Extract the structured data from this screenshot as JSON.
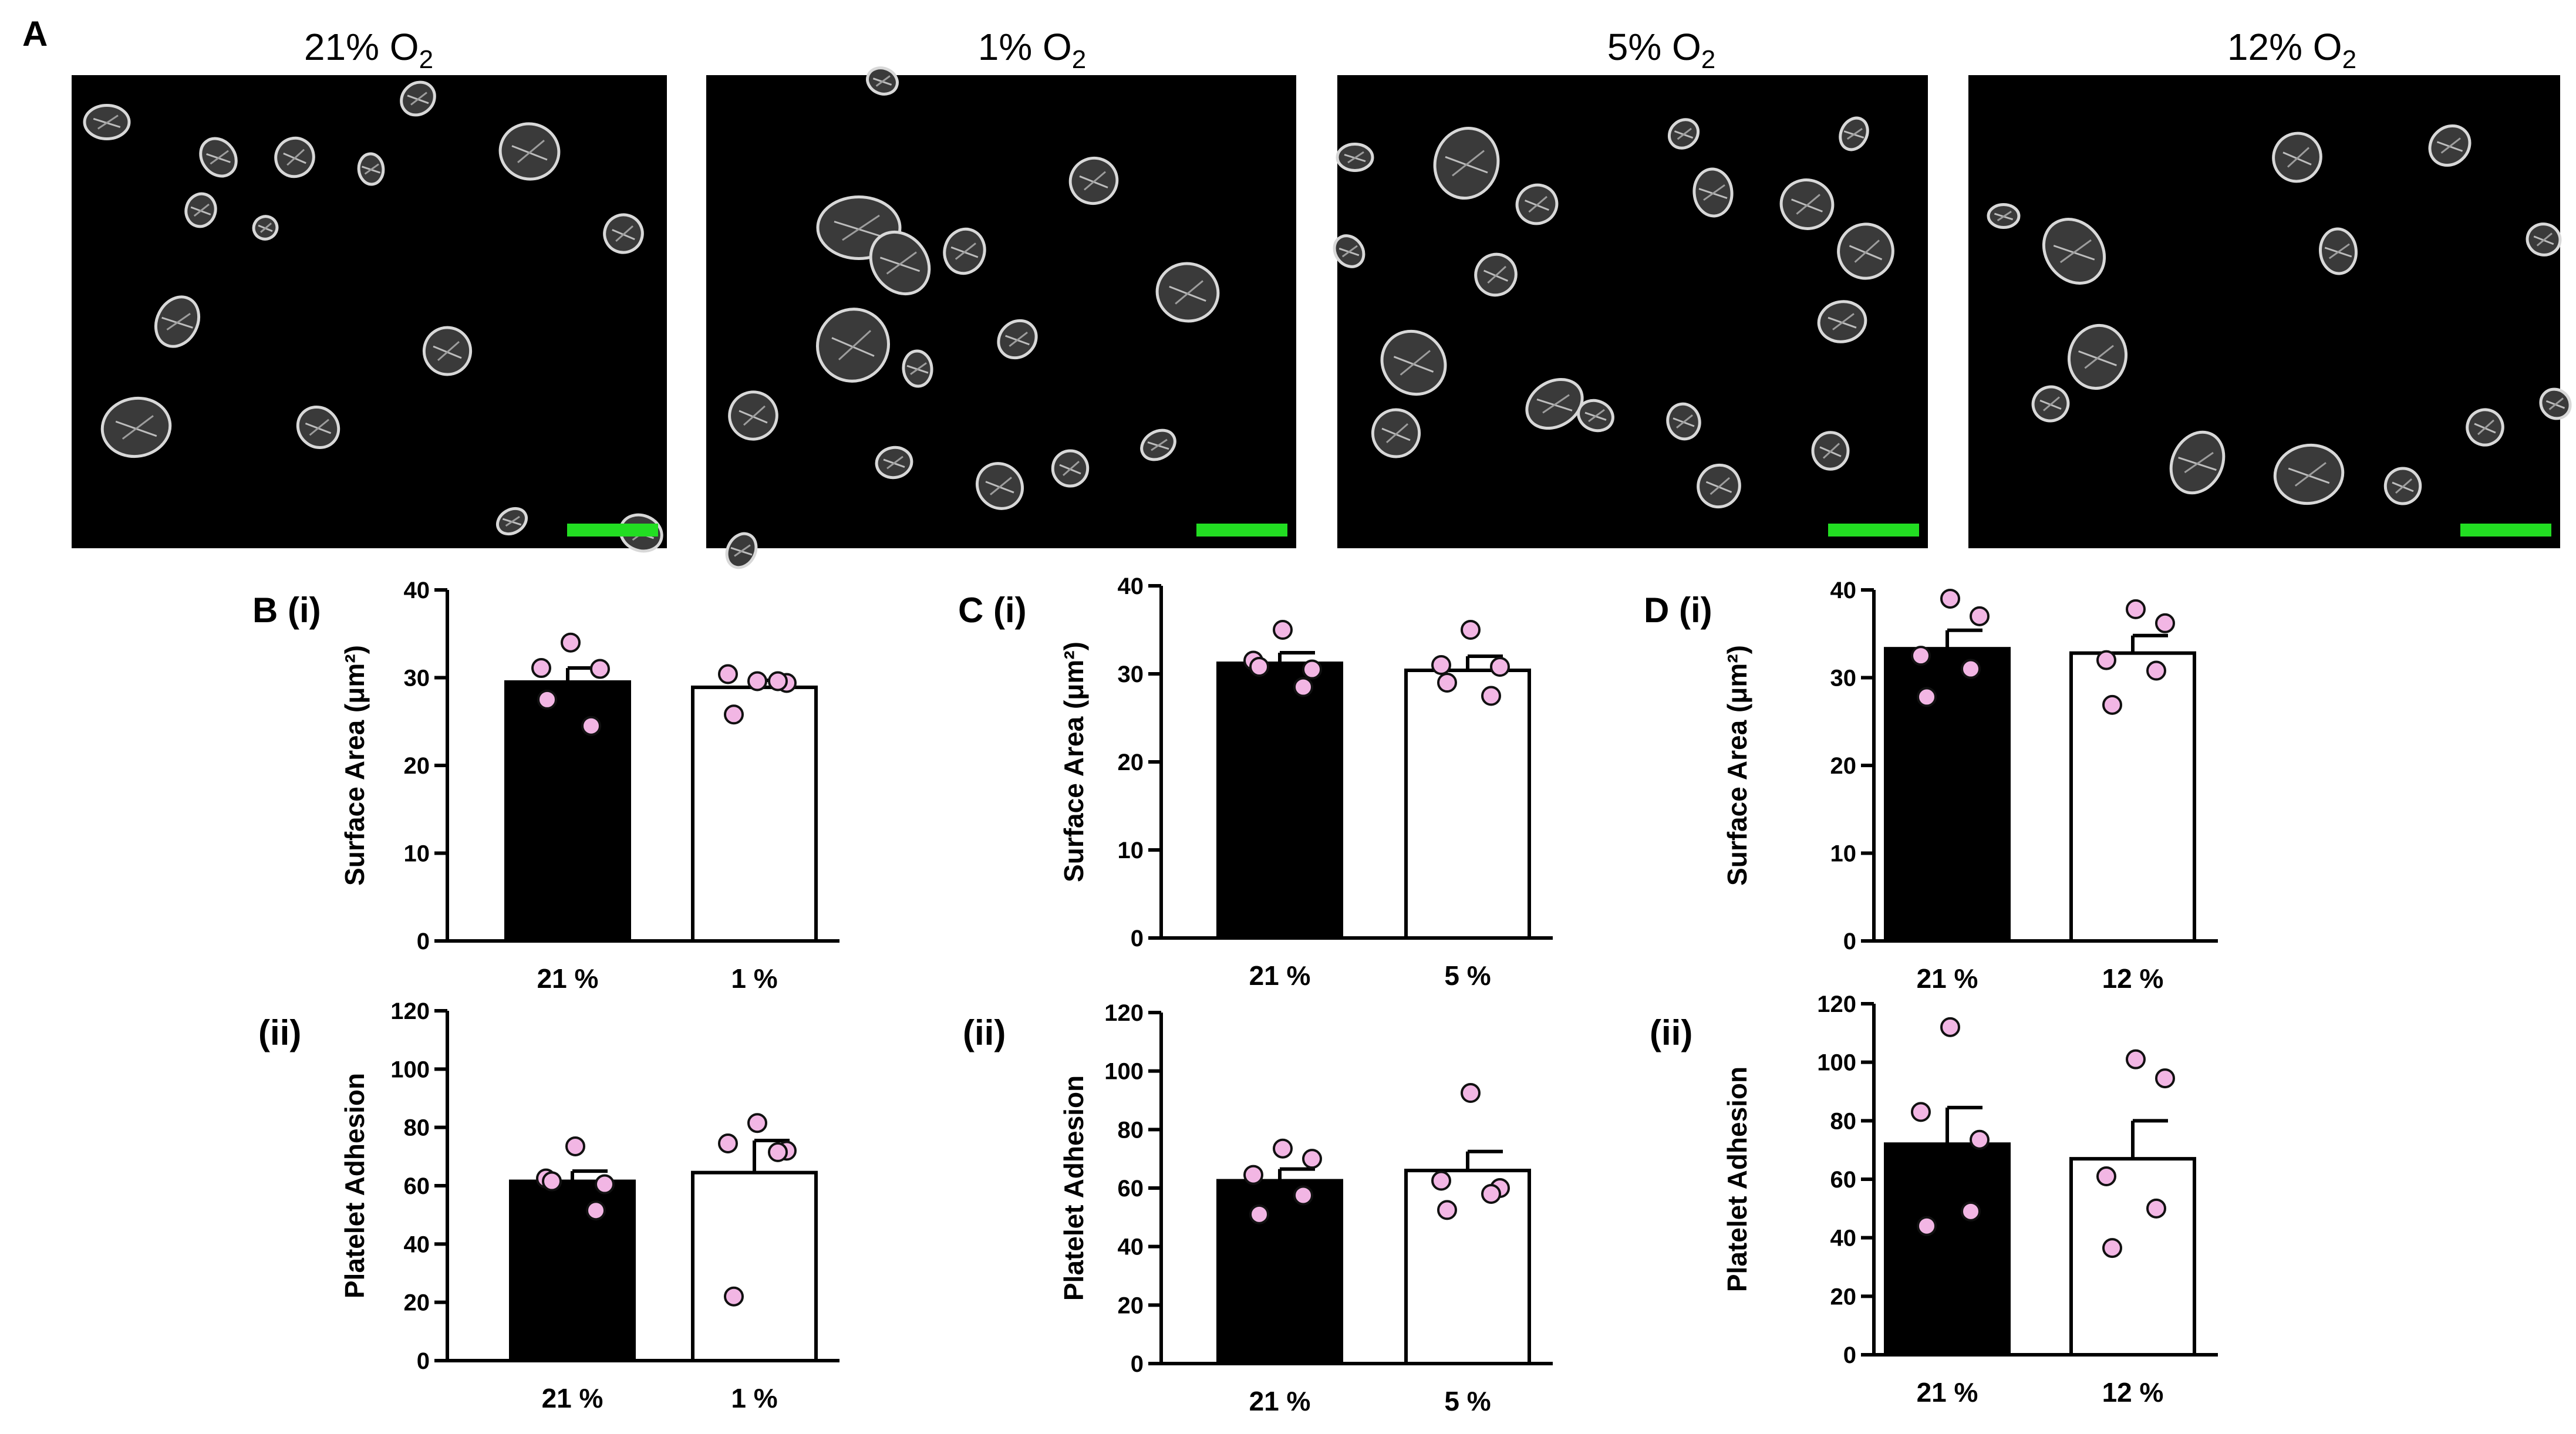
{
  "panel_a": {
    "letter": "A",
    "images": [
      {
        "condition": "21% O",
        "subscript": "2"
      },
      {
        "condition": "1% O",
        "subscript": "2"
      },
      {
        "condition": "5% O",
        "subscript": "2"
      },
      {
        "condition": "12% O",
        "subscript": "2"
      }
    ],
    "scale_bar_color": "#22dd22"
  },
  "colors": {
    "bar_21": "#000000",
    "bar_other": "#ffffff",
    "points": "#f2b6e4",
    "point_stroke": "#111111"
  },
  "chart_data": [
    {
      "id": "B_i",
      "label": "B (i)",
      "type": "bar",
      "ylabel": "Surface Area (μm²)",
      "ylim": [
        0,
        40
      ],
      "yticks": [
        0,
        10,
        20,
        30,
        40
      ],
      "categories": [
        "21 %",
        "1 %"
      ],
      "values": [
        29.5,
        28.9
      ],
      "sem": [
        1.6,
        0.8
      ],
      "points": [
        [
          31.1,
          34.0,
          31.0,
          24.5,
          27.5
        ],
        [
          30.4,
          29.6,
          29.4,
          29.6,
          25.8
        ]
      ]
    },
    {
      "id": "B_ii",
      "label": "(ii)",
      "type": "bar",
      "ylabel": "Platelet Adhesion",
      "ylim": [
        0,
        120
      ],
      "yticks": [
        0,
        20,
        40,
        60,
        80,
        100,
        120
      ],
      "categories": [
        "21 %",
        "1 %"
      ],
      "values": [
        61.5,
        64.5
      ],
      "sem": [
        3.5,
        11.0
      ],
      "points": [
        [
          62.5,
          73.5,
          60.5,
          51.5,
          61.5
        ],
        [
          74.5,
          81.5,
          72.0,
          71.5,
          22.0
        ]
      ]
    },
    {
      "id": "C_i",
      "label": "C (i)",
      "type": "bar",
      "ylabel": "Surface Area (μm²)",
      "ylim": [
        0,
        40
      ],
      "yticks": [
        0,
        10,
        20,
        30,
        40
      ],
      "categories": [
        "21 %",
        "5 %"
      ],
      "values": [
        31.2,
        30.4
      ],
      "sem": [
        1.2,
        1.6
      ],
      "points": [
        [
          31.5,
          35.0,
          30.5,
          28.5,
          30.8
        ],
        [
          31.0,
          35.0,
          30.8,
          27.5,
          29.0
        ]
      ]
    },
    {
      "id": "C_ii",
      "label": "(ii)",
      "type": "bar",
      "ylabel": "Platelet Adhesion",
      "ylim": [
        0,
        120
      ],
      "yticks": [
        0,
        20,
        40,
        60,
        80,
        100,
        120
      ],
      "categories": [
        "21 %",
        "5 %"
      ],
      "values": [
        62.5,
        66.0
      ],
      "sem": [
        4.0,
        6.5
      ],
      "points": [
        [
          64.5,
          73.5,
          70.0,
          57.5,
          51.0
        ],
        [
          62.5,
          92.5,
          60.0,
          58.0,
          52.5
        ]
      ]
    },
    {
      "id": "D_i",
      "label": "D (i)",
      "type": "bar",
      "ylabel": "Surface Area (μm²)",
      "ylim": [
        0,
        40
      ],
      "yticks": [
        0,
        10,
        20,
        30,
        40
      ],
      "categories": [
        "21 %",
        "12 %"
      ],
      "values": [
        33.3,
        32.8
      ],
      "sem": [
        2.1,
        2.0
      ],
      "points": [
        [
          32.5,
          39.0,
          37.0,
          31.0,
          27.8
        ],
        [
          32.0,
          37.8,
          36.2,
          30.8,
          26.9
        ]
      ]
    },
    {
      "id": "D_ii",
      "label": "(ii)",
      "type": "bar",
      "ylabel": "Platelet Adhesion",
      "ylim": [
        0,
        120
      ],
      "yticks": [
        0,
        20,
        40,
        60,
        80,
        100,
        120
      ],
      "categories": [
        "21 %",
        "12 %"
      ],
      "values": [
        72.0,
        67.0
      ],
      "sem": [
        12.5,
        13.0
      ],
      "points": [
        [
          83.0,
          112.0,
          73.5,
          49.0,
          44.0
        ],
        [
          61.0,
          101.0,
          94.5,
          50.0,
          36.5
        ]
      ]
    }
  ]
}
